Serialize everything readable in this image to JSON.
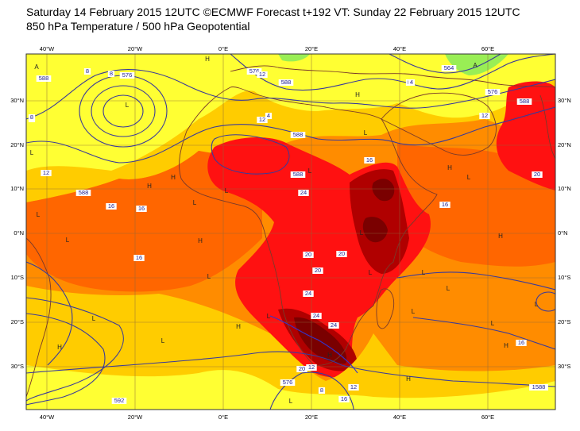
{
  "header": {
    "line1": "Saturday 14 February 2015 12UTC ©ECMWF Forecast t+192 VT: Sunday 22 February 2015 12UTC",
    "line2": "850 hPa Temperature / 500 hPa Geopotential"
  },
  "map": {
    "colors": {
      "background": "#ff8c00",
      "cool_yellow": "#ffff33",
      "yellow_orange": "#ffcc00",
      "orange": "#ff8c00",
      "dark_orange": "#ff6600",
      "red": "#ff1111",
      "dark_red": "#b00000",
      "maroon": "#7a0000",
      "green": "#99ee55",
      "contour": "#3a3a9a",
      "graticule": "#8c6a3a",
      "coast": "#7a3a2a"
    },
    "lon_labels": [
      "40°W",
      "20°W",
      "0°E",
      "20°E",
      "40°E",
      "60°E"
    ],
    "lat_labels": [
      "30°N",
      "20°N",
      "10°N",
      "0°N",
      "10°S",
      "20°S",
      "30°S"
    ],
    "contour_labels": [
      "588",
      "576",
      "8",
      "8",
      "12",
      "4",
      "588",
      "588",
      "12",
      "8",
      "588",
      "564",
      "8",
      "576",
      "576",
      "12",
      "588",
      "12",
      "588",
      "16",
      "16",
      "16",
      "16",
      "20",
      "24",
      "16",
      "20",
      "20",
      "20",
      "24",
      "24",
      "20",
      "12",
      "576",
      "8",
      "16",
      "1588",
      "16",
      "592",
      "12",
      "4",
      "8",
      "24"
    ],
    "pressure_marks": [
      "A",
      "H",
      "L",
      "L",
      "H",
      "L",
      "H",
      "L",
      "L",
      "H",
      "L",
      "L",
      "H",
      "L",
      "H",
      "L",
      "L",
      "H",
      "L",
      "H",
      "L",
      "L",
      "L",
      "L",
      "H",
      "H",
      "L",
      "L",
      "H",
      "L",
      "A",
      "L",
      "L",
      "H",
      "L"
    ]
  }
}
